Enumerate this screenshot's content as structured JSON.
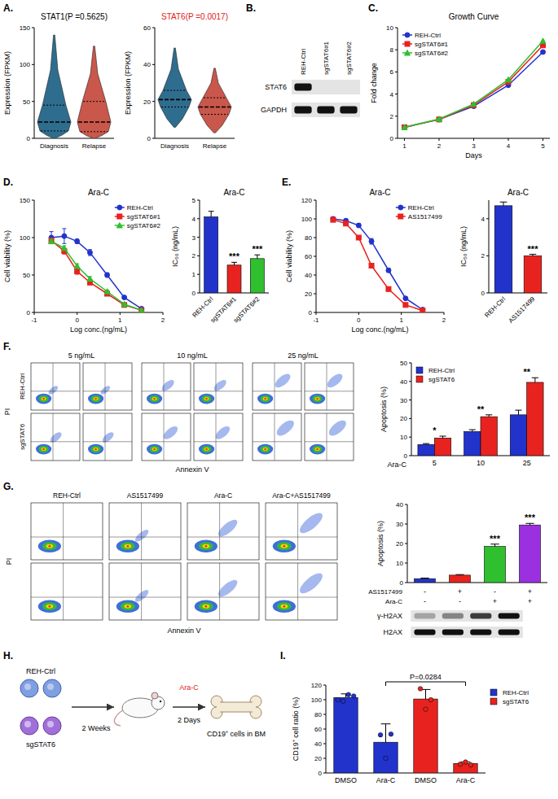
{
  "panel_letters": [
    "A.",
    "B.",
    "C.",
    "D.",
    "E.",
    "F.",
    "G.",
    "H.",
    "I."
  ],
  "chart_data": [
    {
      "type": "violin",
      "title": "STAT1(P =0.5625)",
      "y_label": "Expression (FPKM)",
      "categories": [
        "Diagnosis",
        "Relapse"
      ],
      "colors": [
        "#2f6d8f",
        "#c9574b"
      ],
      "stats": [
        {
          "min": 0,
          "q1": 10,
          "median": 22,
          "q3": 45,
          "max": 140
        },
        {
          "min": 0,
          "q1": 9,
          "median": 22,
          "q3": 50,
          "max": 125
        }
      ],
      "ylim": [
        0,
        150
      ],
      "yticks": [
        0,
        50,
        100,
        150
      ]
    },
    {
      "type": "violin",
      "title": "STAT6(P =0.0017)",
      "y_label": "Expression (FPKM)",
      "categories": [
        "Diagnosis",
        "Relapse"
      ],
      "colors": [
        "#2f6d8f",
        "#c9574b"
      ],
      "stats": [
        {
          "min": 6,
          "q1": 17,
          "median": 21,
          "q3": 26,
          "max": 49
        },
        {
          "min": 3,
          "q1": 13,
          "median": 17,
          "q3": 22,
          "max": 38
        }
      ],
      "ylim": [
        0,
        60
      ],
      "yticks": [
        0,
        20,
        40,
        60
      ]
    },
    {
      "type": "line",
      "title": "Growth Curve",
      "x_label": "Days",
      "y_label": "Fold change",
      "x": [
        1,
        2,
        3,
        4,
        5
      ],
      "xlim": [
        0.8,
        5.2
      ],
      "xticks": [
        1,
        2,
        3,
        4,
        5
      ],
      "ylim": [
        0,
        10
      ],
      "yticks": [
        0,
        2,
        4,
        6,
        8,
        10
      ],
      "legend": "top-left",
      "series": [
        {
          "name": "REH-Ctrl",
          "color": "#2233cc",
          "marker": "circle",
          "values": [
            1,
            1.7,
            2.9,
            4.8,
            7.8
          ]
        },
        {
          "name": "sgSTAT6#1",
          "color": "#e8231f",
          "marker": "square",
          "values": [
            1,
            1.7,
            3.0,
            5.1,
            8.4
          ]
        },
        {
          "name": "sgSTAT6#2",
          "color": "#2fbf2f",
          "marker": "triangle",
          "values": [
            1,
            1.75,
            3.1,
            5.3,
            8.8
          ]
        }
      ]
    },
    {
      "type": "line",
      "title": "Ara-C",
      "x_label": "Log conc.(ng/mL)",
      "y_label": "Cell viability (%)",
      "x": [
        -0.6,
        -0.3,
        0,
        0.3,
        0.7,
        1.1,
        1.5
      ],
      "xlim": [
        -1,
        2
      ],
      "xticks": [
        -1,
        0,
        1,
        2
      ],
      "ylim": [
        0,
        150
      ],
      "yticks": [
        0,
        50,
        100,
        150
      ],
      "legend": "top-right",
      "series": [
        {
          "name": "REH-Ctrl",
          "color": "#2233cc",
          "marker": "circle",
          "values": [
            100,
            102,
            95,
            80,
            50,
            20,
            5
          ],
          "errors": [
            8,
            10,
            3,
            4,
            3,
            2,
            1
          ]
        },
        {
          "name": "sgSTAT6#1",
          "color": "#e8231f",
          "marker": "square",
          "values": [
            96,
            82,
            55,
            40,
            25,
            10,
            3
          ],
          "errors": [
            3,
            4,
            4,
            3,
            2,
            1,
            1
          ]
        },
        {
          "name": "sgSTAT6#2",
          "color": "#2fbf2f",
          "marker": "triangle",
          "values": [
            95,
            86,
            62,
            45,
            28,
            11,
            3
          ],
          "errors": [
            3,
            3,
            3,
            3,
            2,
            1,
            1
          ]
        }
      ]
    },
    {
      "type": "bar",
      "title": "Ara-C",
      "y_label": "IC₅₀ (ng/mL)",
      "categories": [
        "REH-Ctrl",
        "sgSTAT6#1",
        "sgSTAT6#2"
      ],
      "values": [
        4.1,
        1.5,
        1.85
      ],
      "errors": [
        0.3,
        0.15,
        0.2
      ],
      "colors": [
        "#2233cc",
        "#e8231f",
        "#2fbf2f"
      ],
      "ylim": [
        0,
        5
      ],
      "yticks": [
        0,
        1,
        2,
        3,
        4,
        5
      ],
      "annotations": [
        null,
        "***",
        "***"
      ]
    },
    {
      "type": "line",
      "title": "Ara-C",
      "x_label": "Log conc.(ng/mL)",
      "y_label": "Cell viability (%)",
      "x": [
        -0.6,
        -0.3,
        0,
        0.3,
        0.7,
        1.1,
        1.5
      ],
      "xlim": [
        -1,
        2
      ],
      "xticks": [
        -1,
        0,
        1,
        2
      ],
      "ylim": [
        0,
        120
      ],
      "yticks": [
        0,
        20,
        40,
        60,
        80,
        100,
        120
      ],
      "legend": "top-right",
      "series": [
        {
          "name": "REH-Ctrl",
          "color": "#2233cc",
          "marker": "circle",
          "values": [
            100,
            98,
            93,
            76,
            45,
            15,
            3
          ],
          "errors": [
            2,
            2,
            2,
            3,
            2,
            1,
            1
          ]
        },
        {
          "name": "AS1517499",
          "color": "#e8231f",
          "marker": "square",
          "values": [
            99,
            95,
            80,
            50,
            25,
            8,
            2
          ],
          "errors": [
            2,
            2,
            2,
            2,
            2,
            1,
            1
          ]
        }
      ]
    },
    {
      "type": "bar",
      "title": "Ara-C",
      "y_label": "IC₅₀ (ng/mL)",
      "categories": [
        "REH-Ctrl",
        "AS1517499"
      ],
      "values": [
        4.7,
        2.0
      ],
      "errors": [
        0.2,
        0.08
      ],
      "colors": [
        "#2233cc",
        "#e8231f"
      ],
      "ylim": [
        0,
        5
      ],
      "yticks": [
        0,
        2,
        4
      ],
      "annotations": [
        null,
        "***"
      ]
    },
    {
      "type": "bar",
      "y_label": "Apoptosis (%)",
      "x_label": "Ara-C",
      "categories": [
        "5",
        "10",
        "25"
      ],
      "legend": "top-left",
      "series": [
        {
          "name": "REH-Ctrl",
          "color": "#2233cc",
          "values": [
            6,
            13,
            22
          ],
          "errors": [
            0.5,
            1,
            2.5
          ]
        },
        {
          "name": "sgSTAT6",
          "color": "#e8231f",
          "values": [
            9.5,
            21,
            39.5
          ],
          "errors": [
            1,
            1,
            2.5
          ]
        }
      ],
      "ylim": [
        0,
        50
      ],
      "yticks": [
        0,
        10,
        20,
        30,
        40,
        50
      ],
      "annotations": [
        "*",
        "**",
        "**"
      ]
    },
    {
      "type": "bar",
      "y_label": "Apoptosis (%)",
      "categories": [
        null,
        null,
        null,
        null
      ],
      "values": [
        2,
        3.8,
        18.5,
        29.5
      ],
      "errors": [
        0.3,
        0.3,
        1.2,
        0.8
      ],
      "colors": [
        "#2233cc",
        "#e8231f",
        "#2fbf2f",
        "#9b30e0"
      ],
      "ylim": [
        0,
        40
      ],
      "yticks": [
        0,
        10,
        20,
        30,
        40
      ],
      "annotations": [
        null,
        null,
        "***",
        "***"
      ],
      "treatment_table": {
        "rows": [
          {
            "label": "AS1517499",
            "signs": [
              "-",
              "+",
              "-",
              "+"
            ]
          },
          {
            "label": "Ara-C",
            "signs": [
              "-",
              "-",
              "+",
              "+"
            ]
          }
        ]
      }
    },
    {
      "type": "bar",
      "y_label": "CD19⁺ cell ratio (%)",
      "categories": [
        "DMSO",
        "Ara-C",
        "DMSO",
        "Ara-C"
      ],
      "legend": "right",
      "series": [
        {
          "name": "REH-Ctrl",
          "color": "#2233cc",
          "values": [
            103,
            42,
            null,
            null
          ],
          "errors": [
            5,
            25,
            null,
            null
          ],
          "points": [
            [
              100,
              98,
              107,
              105
            ],
            [
              52,
              20,
              53
            ],
            null,
            null
          ]
        },
        {
          "name": "sgSTAT6",
          "color": "#e8231f",
          "values": [
            null,
            null,
            101,
            13
          ],
          "errors": [
            null,
            null,
            13,
            2
          ],
          "points": [
            null,
            null,
            [
              115,
              87,
              100
            ],
            [
              12,
              15,
              11
            ]
          ]
        }
      ],
      "ylim": [
        0,
        120
      ],
      "yticks": [
        0,
        20,
        40,
        60,
        80,
        100,
        120
      ],
      "comparisons": [
        {
          "categories": [
            1,
            3
          ],
          "label": "P=0.0284"
        }
      ]
    }
  ],
  "blots": [
    {
      "lanes": [
        "REH-Ctrl",
        "sgSTAT6#1",
        "sgSTAT6#2"
      ],
      "rows": [
        {
          "label": "STAT6",
          "bands": [
            1,
            0,
            0
          ]
        },
        {
          "label": "GAPDH",
          "bands": [
            1,
            1,
            1
          ]
        }
      ]
    },
    {
      "rows": [
        {
          "label": "γ-H2AX",
          "bands": [
            0.3,
            0.45,
            0.8,
            1
          ]
        },
        {
          "label": "H2AX",
          "bands": [
            1,
            1,
            1,
            1
          ]
        }
      ]
    }
  ],
  "flow_f": {
    "columns": [
      "5 ng/mL",
      "10 ng/mL",
      "25 ng/mL"
    ],
    "rows": [
      "REH-Ctrl",
      "sgSTAT6"
    ],
    "y_label": "PI",
    "x_label": "Annexin V"
  },
  "flow_g": {
    "columns": [
      "REH-Ctrl",
      "AS1517499",
      "Ara-C",
      "Ara-C+AS1517499"
    ],
    "y_label": "PI",
    "x_label": "Annexin V"
  },
  "schematic": {
    "cells": [
      "REH-Ctrl",
      "sgSTAT6"
    ],
    "step1": "2 Weeks",
    "drug": "Ara-C",
    "step2": "2 Days",
    "readout": "CD19⁺ cells in BM"
  }
}
